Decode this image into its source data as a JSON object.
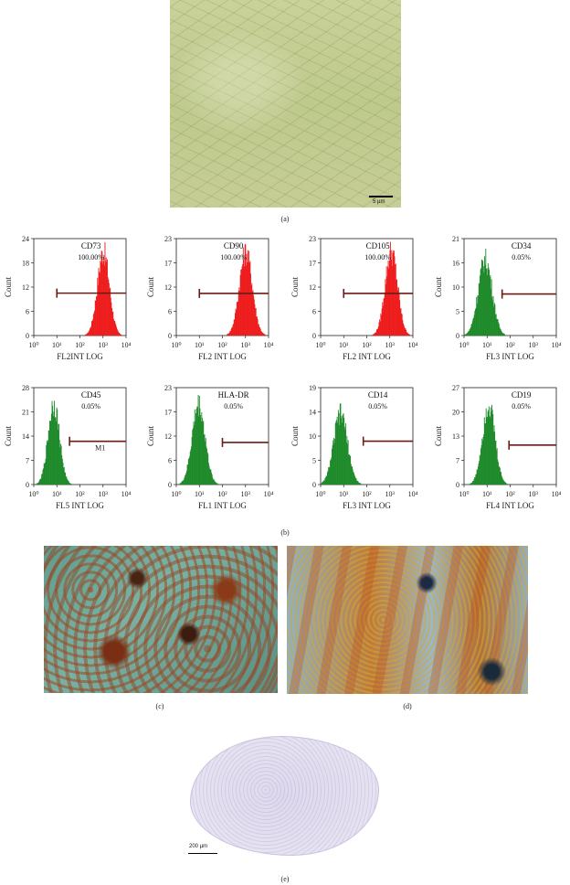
{
  "panels": {
    "a": {
      "label": "(a)",
      "scale": "5 µm"
    },
    "b": {
      "label": "(b)"
    },
    "c": {
      "label": "(c)"
    },
    "d": {
      "label": "(d)"
    },
    "e": {
      "label": "(e)",
      "scale": "200 µm"
    }
  },
  "chart_data": [
    {
      "type": "bar",
      "title": "CD73",
      "percent": "100.00%",
      "xlabel": "FL2INT LOG",
      "ylabel": "Count",
      "yticks": [
        "0",
        "6",
        "12",
        "18",
        "24"
      ],
      "ymax": 24,
      "xticks": [
        "10⁰",
        "10¹",
        "10²",
        "10³",
        "10⁴"
      ],
      "color": "#ee1c1c",
      "peak_log": 3.0,
      "peak_count": 24,
      "width_log": 0.26,
      "gate_log": [
        1.0,
        4.0
      ],
      "gate_count": 10.5,
      "gate_label": ""
    },
    {
      "type": "bar",
      "title": "CD90",
      "percent": "100.00%",
      "xlabel": "FL2 INT LOG",
      "ylabel": "Count",
      "yticks": [
        "0",
        "6",
        "12",
        "17",
        "23"
      ],
      "ymax": 23,
      "xticks": [
        "10⁰",
        "10¹",
        "10²",
        "10³",
        "10⁴"
      ],
      "color": "#ee1c1c",
      "peak_log": 3.0,
      "peak_count": 23,
      "width_log": 0.28,
      "gate_log": [
        1.0,
        4.0
      ],
      "gate_count": 10,
      "gate_label": ""
    },
    {
      "type": "bar",
      "title": "CD105",
      "percent": "100.00%",
      "xlabel": "FL2 INT LOG",
      "ylabel": "Count",
      "yticks": [
        "0",
        "6",
        "12",
        "17",
        "23"
      ],
      "ymax": 23,
      "xticks": [
        "10⁰",
        "10¹",
        "10²",
        "10³",
        "10⁴"
      ],
      "color": "#ee1c1c",
      "peak_log": 3.05,
      "peak_count": 23,
      "width_log": 0.27,
      "gate_log": [
        1.0,
        4.0
      ],
      "gate_count": 10,
      "gate_label": ""
    },
    {
      "type": "bar",
      "title": "CD34",
      "percent": "0.05%",
      "xlabel": "FL3 INT LOG",
      "ylabel": "Count",
      "yticks": [
        "0",
        "5",
        "10",
        "16",
        "21"
      ],
      "ymax": 21,
      "xticks": [
        "10⁰",
        "10¹",
        "10²",
        "10³",
        "10⁴"
      ],
      "color": "#1e8a2a",
      "peak_log": 0.9,
      "peak_count": 19,
      "width_log": 0.3,
      "gate_log": [
        1.65,
        4.0
      ],
      "gate_count": 9,
      "gate_label": ""
    },
    {
      "type": "bar",
      "title": "CD45",
      "percent": "0.05%",
      "xlabel": "FL5 INT LOG",
      "ylabel": "Count",
      "yticks": [
        "0",
        "7",
        "14",
        "21",
        "28"
      ],
      "ymax": 28,
      "xticks": [
        "10⁰",
        "10¹",
        "10²",
        "10³",
        "10⁴"
      ],
      "color": "#1e8a2a",
      "peak_log": 0.85,
      "peak_count": 27,
      "width_log": 0.25,
      "gate_log": [
        1.55,
        4.0
      ],
      "gate_count": 12.5,
      "gate_label": "M1"
    },
    {
      "type": "bar",
      "title": "HLA-DR",
      "percent": "0.05%",
      "xlabel": "FL1 INT LOG",
      "ylabel": "Count",
      "yticks": [
        "0",
        "6",
        "12",
        "17",
        "23"
      ],
      "ymax": 23,
      "xticks": [
        "10⁰",
        "10¹",
        "10²",
        "10³",
        "10⁴"
      ],
      "color": "#1e8a2a",
      "peak_log": 0.95,
      "peak_count": 22,
      "width_log": 0.28,
      "gate_log": [
        2.0,
        4.0
      ],
      "gate_count": 10,
      "gate_label": ""
    },
    {
      "type": "bar",
      "title": "CD14",
      "percent": "0.05%",
      "xlabel": "FL3 INT LOG",
      "ylabel": "Count",
      "yticks": [
        "0",
        "5",
        "10",
        "14",
        "19"
      ],
      "ymax": 19,
      "xticks": [
        "10⁰",
        "10¹",
        "10²",
        "10³",
        "10⁴"
      ],
      "color": "#1e8a2a",
      "peak_log": 0.85,
      "peak_count": 16,
      "width_log": 0.3,
      "gate_log": [
        1.85,
        4.0
      ],
      "gate_count": 8.5,
      "gate_label": ""
    },
    {
      "type": "bar",
      "title": "CD19",
      "percent": "0.05%",
      "xlabel": "FL4 INT LOG",
      "ylabel": "Count",
      "yticks": [
        "0",
        "7",
        "13",
        "20",
        "27"
      ],
      "ymax": 27,
      "xticks": [
        "10⁰",
        "10¹",
        "10²",
        "10³",
        "10⁴"
      ],
      "color": "#1e8a2a",
      "peak_log": 1.05,
      "peak_count": 26,
      "width_log": 0.27,
      "gate_log": [
        1.95,
        4.0
      ],
      "gate_count": 11,
      "gate_label": ""
    }
  ]
}
